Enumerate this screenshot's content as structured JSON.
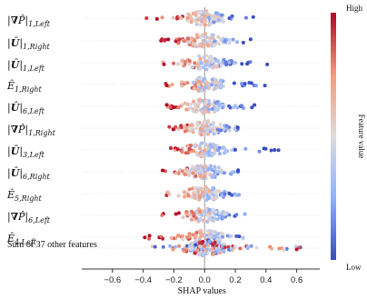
{
  "chart_data": {
    "type": "scatter",
    "title": "",
    "xlabel": "SHAP values",
    "ylabel": "",
    "xlim": [
      -0.8,
      0.75
    ],
    "xticks": [
      "−0.6",
      "−0.4",
      "−0.2",
      "0.0",
      "0.2",
      "0.4",
      "0.6"
    ],
    "xtick_values": [
      -0.6,
      -0.4,
      -0.2,
      0.0,
      0.2,
      0.4,
      0.6
    ],
    "grid": false,
    "features": [
      {
        "label": "|∇P̂|1,Left",
        "range": [
          -0.4,
          0.32
        ],
        "spread": 0.55
      },
      {
        "label": "|Û|1,Right",
        "range": [
          -0.33,
          0.3
        ],
        "spread": 0.5
      },
      {
        "label": "|Û|1,Left",
        "range": [
          -0.27,
          0.43
        ],
        "spread": 0.5
      },
      {
        "label": "Ê1,Right",
        "range": [
          -0.28,
          0.4
        ],
        "spread": 0.4
      },
      {
        "label": "|Û|6,Left",
        "range": [
          -0.27,
          0.35
        ],
        "spread": 0.55
      },
      {
        "label": "|∇P̂|1,Right",
        "range": [
          -0.25,
          0.22
        ],
        "spread": 0.4
      },
      {
        "label": "|Û|3,Left",
        "range": [
          -0.22,
          0.55
        ],
        "spread": 0.35
      },
      {
        "label": "|Û|6,Right",
        "range": [
          -0.37,
          0.22
        ],
        "spread": 0.3
      },
      {
        "label": "Ê5,Right",
        "range": [
          -0.26,
          0.25
        ],
        "spread": 0.35
      },
      {
        "label": "|∇P̂|6,Left",
        "range": [
          -0.3,
          0.3
        ],
        "spread": 0.35
      },
      {
        "label": "Ê4,Left",
        "range": [
          -0.4,
          0.25
        ],
        "spread": 0.3
      },
      {
        "label": "Sum of 37 other features",
        "range": [
          -0.35,
          0.68
        ],
        "spread": 0.6
      }
    ],
    "colorbar": {
      "title": "Feature value",
      "high_label": "High",
      "low_label": "Low",
      "colors": [
        "#3a4cc0",
        "#8fb1fe",
        "#dddcdc",
        "#f49a7b",
        "#b40426"
      ]
    }
  }
}
